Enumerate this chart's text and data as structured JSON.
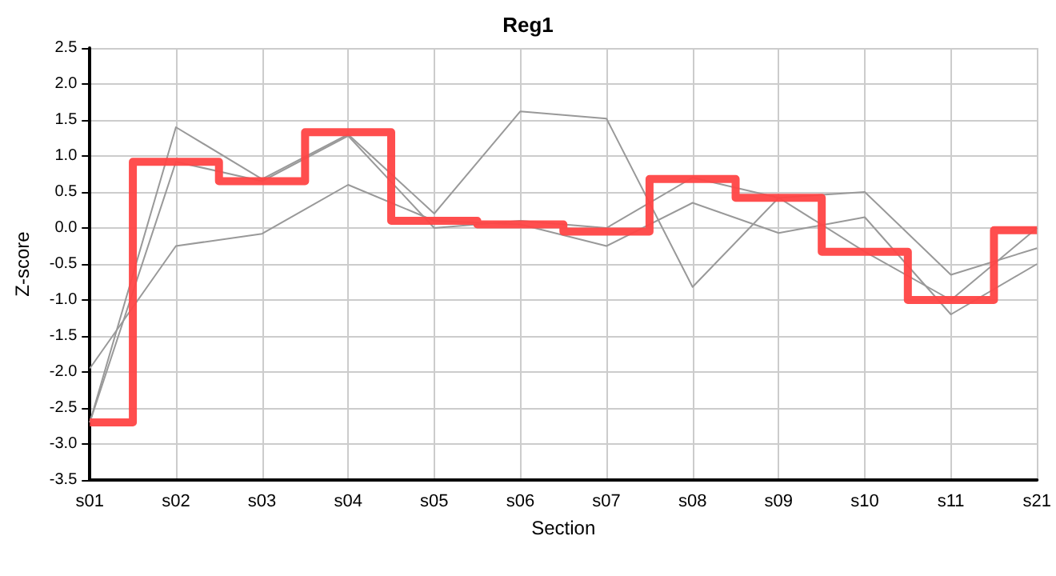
{
  "chart_data": {
    "type": "line",
    "title": "Reg1",
    "xlabel": "Section",
    "ylabel": "Z-score",
    "categories": [
      "s01",
      "s02",
      "s03",
      "s04",
      "s05",
      "s06",
      "s07",
      "s08",
      "s09",
      "s10",
      "s11",
      "s21"
    ],
    "series": [
      {
        "color": "#999999",
        "values": [
          -2.7,
          1.4,
          0.68,
          1.3,
          0.2,
          1.62,
          1.52,
          -0.82,
          0.42,
          0.5,
          -0.65,
          -0.28
        ]
      },
      {
        "color": "#999999",
        "values": [
          -2.7,
          0.92,
          0.65,
          1.28,
          0.0,
          0.1,
          0.0,
          0.7,
          0.42,
          -0.33,
          -1.0,
          0.0
        ]
      },
      {
        "color": "#999999",
        "values": [
          -1.95,
          -0.25,
          -0.08,
          0.6,
          0.1,
          0.05,
          -0.25,
          0.35,
          -0.07,
          0.15,
          -1.2,
          -0.5
        ]
      },
      {
        "type": "step",
        "color": "#ff4444",
        "values": [
          -2.7,
          0.92,
          0.65,
          1.33,
          0.1,
          0.05,
          -0.05,
          0.68,
          0.42,
          -0.33,
          -1.0,
          -0.03
        ]
      }
    ],
    "ylim": [
      -3.5,
      2.5
    ],
    "yticks": [
      -3.5,
      {
        "value": -3,
        "label": "-3.0"
      },
      -2.5,
      {
        "value": -2,
        "label": "-2.0"
      },
      -1.5,
      {
        "value": -1,
        "label": "-1.0"
      },
      -0.5,
      {
        "value": 0,
        "label": "0.0"
      },
      0.5,
      {
        "value": 1,
        "label": "1.0"
      },
      1.5,
      {
        "value": 2,
        "label": "2.0"
      },
      2.5
    ],
    "grid": true,
    "marker": "none",
    "line_style": "solid"
  }
}
